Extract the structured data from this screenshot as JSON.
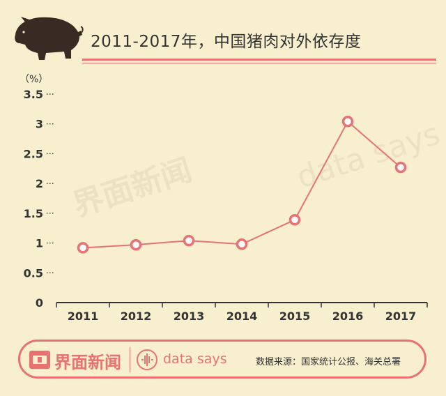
{
  "title": "2011-2017年，中国猪肉对外依存度",
  "footer": {
    "brand_name": "界面新闻",
    "data_says": "data says",
    "source": "数据来源：国家统计公报、海关总署"
  },
  "watermarks": {
    "brand": "界面新闻",
    "data_says": "data says"
  },
  "icons": {
    "pig": "pig-icon",
    "brand": "jiemian-logo-icon",
    "data_says": "data-says-logo-icon"
  },
  "colors": {
    "background": "#f8efcf",
    "accent": "#e87272",
    "pig": "#3a2a24",
    "text": "#333333"
  },
  "chart_data": {
    "type": "line",
    "title": "2011-2017年，中国猪肉对外依存度",
    "ylabel": "（%）",
    "xlabel": "",
    "categories": [
      "2011",
      "2012",
      "2013",
      "2014",
      "2015",
      "2016",
      "2017"
    ],
    "values": [
      0.92,
      0.97,
      1.04,
      0.98,
      1.39,
      3.04,
      2.27
    ],
    "ylim": [
      0,
      3.5
    ],
    "yticks": [
      0,
      0.5,
      1,
      1.5,
      2,
      2.5,
      3,
      3.5
    ],
    "ytick_labels": [
      "0",
      "0.5",
      "1",
      "1.5",
      "2",
      "2.5",
      "3",
      "3.5"
    ],
    "grid": false,
    "legend": "none"
  }
}
